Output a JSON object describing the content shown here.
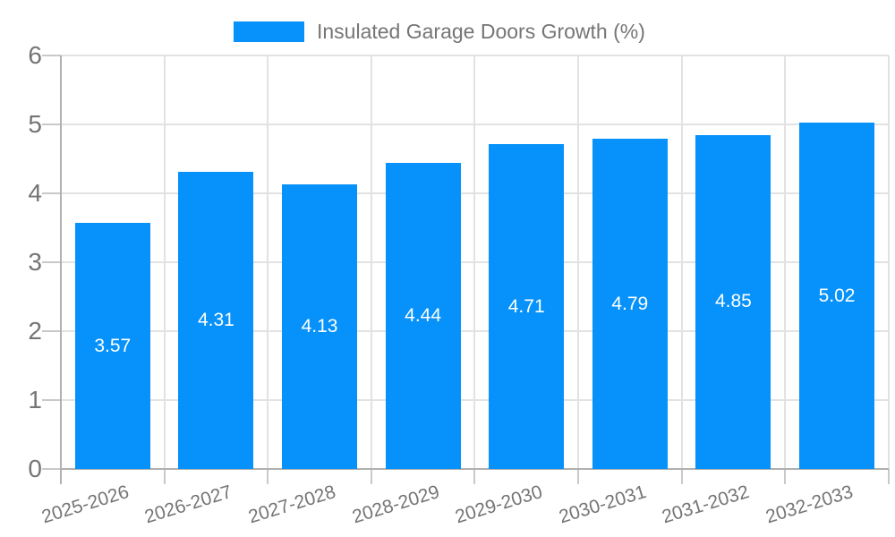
{
  "legend": {
    "label": "Insulated Garage Doors Growth (%)"
  },
  "chart_data": {
    "type": "bar",
    "title": "Insulated Garage Doors Growth (%)",
    "categories": [
      "2025-2026",
      "2026-2027",
      "2027-2028",
      "2028-2029",
      "2029-2030",
      "2030-2031",
      "2031-2032",
      "2032-2033"
    ],
    "values": [
      3.57,
      4.31,
      4.13,
      4.44,
      4.71,
      4.79,
      4.85,
      5.02
    ],
    "value_labels": [
      "3.57",
      "4.31",
      "4.13",
      "4.44",
      "4.71",
      "4.79",
      "4.85",
      "5.02"
    ],
    "xlabel": "",
    "ylabel": "",
    "ylim": [
      0,
      6
    ],
    "yticks": [
      0,
      1,
      2,
      3,
      4,
      5,
      6
    ],
    "grid": true,
    "legend_position": "top-center",
    "colors": {
      "bar": "#0692fa",
      "bar_value_text": "#ffffff",
      "axis_text": "#757575",
      "gridline": "#e2e2e2",
      "tick": "#c9c9c9",
      "axis_line": "#b0b0b0",
      "background": "#ffffff"
    }
  }
}
